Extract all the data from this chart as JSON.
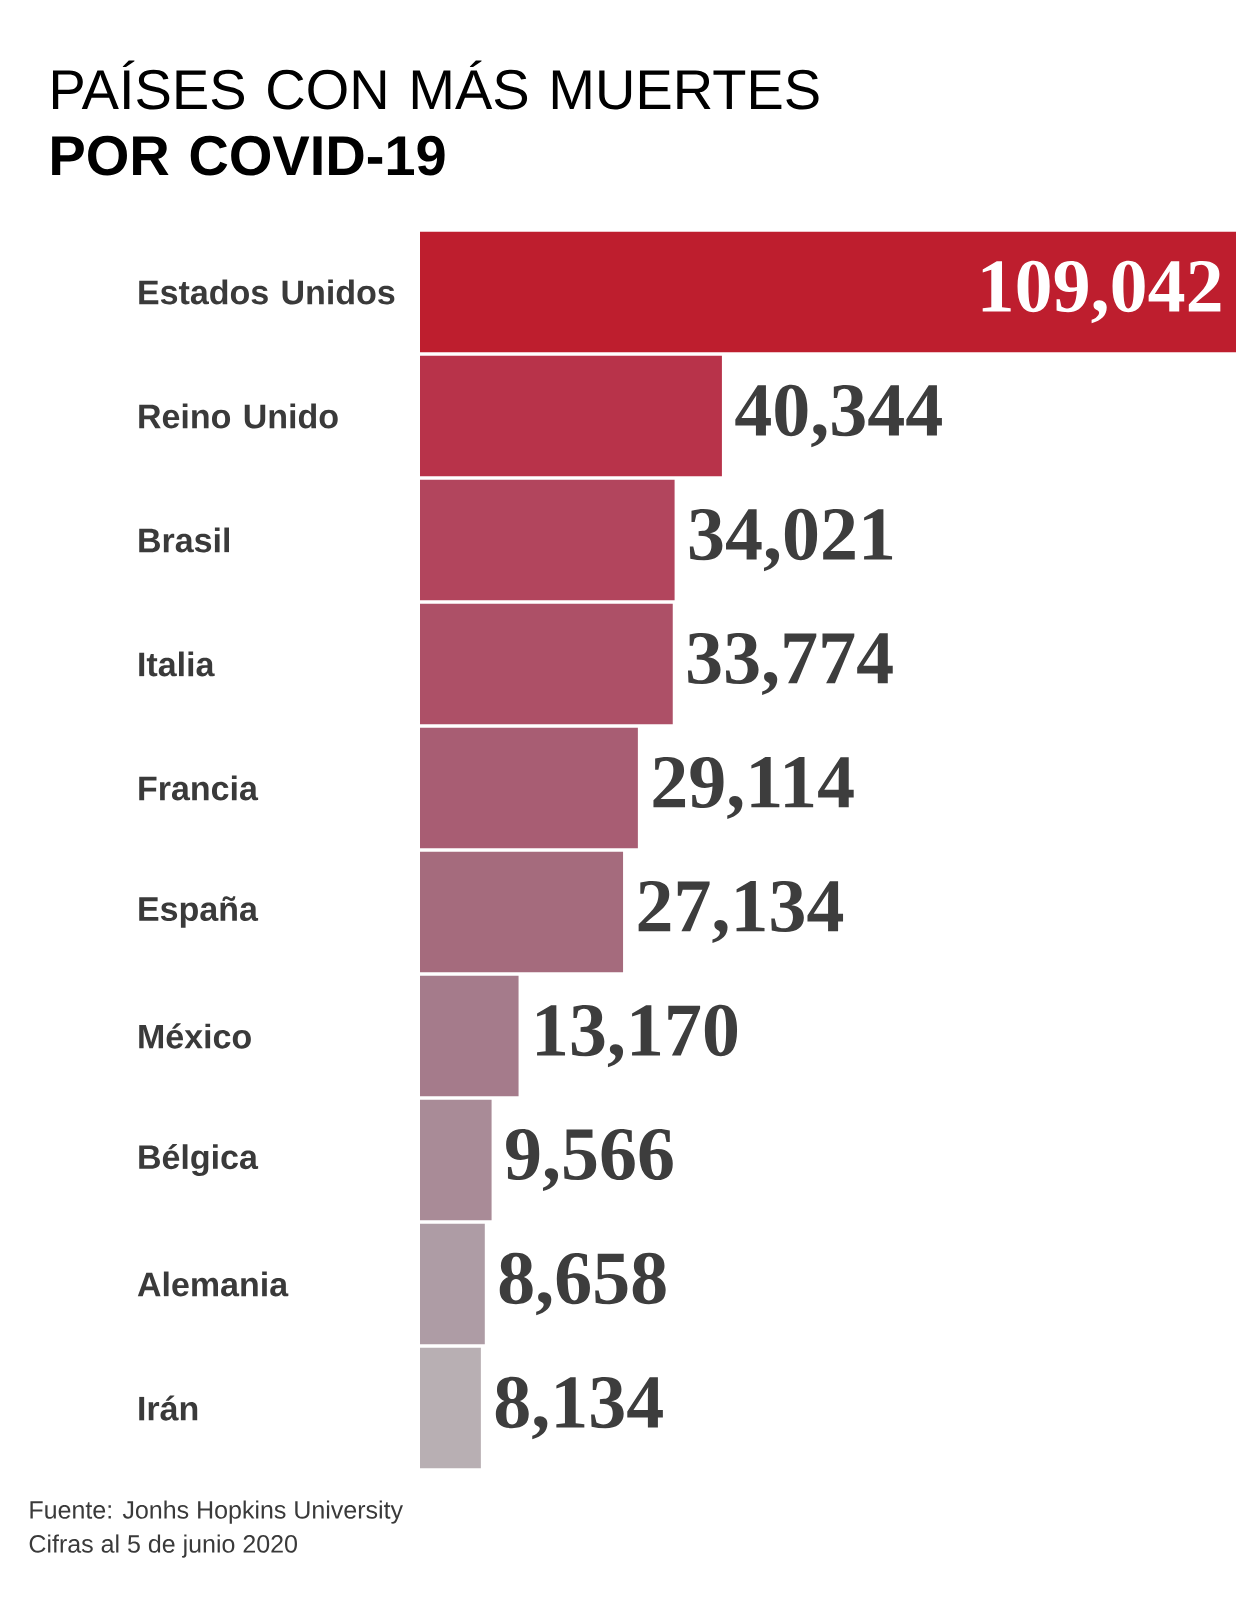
{
  "chart_data": {
    "type": "bar",
    "orientation": "horizontal",
    "title": "PAÍSES CON MÁS MUERTES **POR COVID-19**",
    "categories": [
      "Estados Unidos",
      "Reino Unido",
      "Brasil",
      "Italia",
      "Francia",
      "España",
      "México",
      "Bélgica",
      "Alemania",
      "Irán"
    ],
    "values": [
      109042,
      40344,
      34021,
      33774,
      29114,
      27134,
      13170,
      9566,
      8658,
      8134
    ],
    "value_labels": [
      "109,042",
      "40,344",
      "34,021",
      "33,774",
      "29,114",
      "27,134",
      "13,170",
      "9,566",
      "8,658",
      "8,134"
    ],
    "colors": [
      "#be1e2e",
      "#b8334a",
      "#b2455d",
      "#ad5067",
      "#a85d73",
      "#a56b7d",
      "#a57b8b",
      "#a98b97",
      "#ae9ca5",
      "#b8afb3"
    ],
    "annotations": [
      "Fuente: Jonhs Hopkins University",
      "Cifras al 5 de junio 2020"
    ]
  }
}
